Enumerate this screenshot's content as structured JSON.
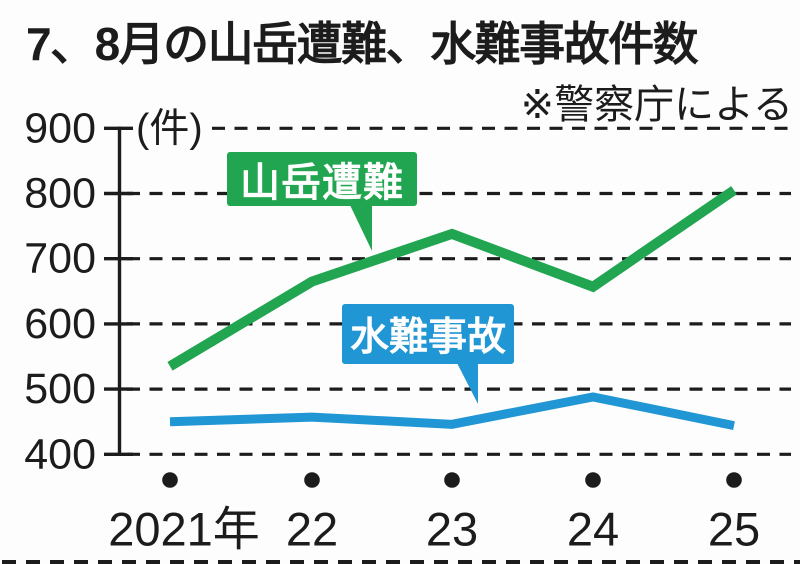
{
  "title": "7、8月の山岳遭難、水難事故件数",
  "source_note": "※警察庁による",
  "chart_data": {
    "type": "line",
    "title": "7、8月の山岳遭難、水難事故件数",
    "source": "※警察庁による",
    "unit_label": "(件)",
    "x_tick_labels": [
      "2021年",
      "22",
      "23",
      "24",
      "25"
    ],
    "x_years": [
      2021,
      2022,
      2023,
      2024,
      2025
    ],
    "series": [
      {
        "name": "山岳遭難",
        "color": "#21a551",
        "values": [
          535,
          665,
          738,
          657,
          805
        ]
      },
      {
        "name": "水難事故",
        "color": "#2196d4",
        "values": [
          450,
          457,
          446,
          488,
          444
        ]
      }
    ],
    "ylim": [
      400,
      900
    ],
    "yticks": [
      900,
      800,
      700,
      600,
      500,
      400
    ],
    "grid": "horizontal-dashed",
    "legend_position": "callout-labels-on-plot",
    "marker_note": "black dots mark each year position below the 400 gridline"
  },
  "colors": {
    "mountain_series": "#21a551",
    "water_series": "#2196d4",
    "text": "#1c1c1c",
    "background": "#fdfdfd"
  }
}
